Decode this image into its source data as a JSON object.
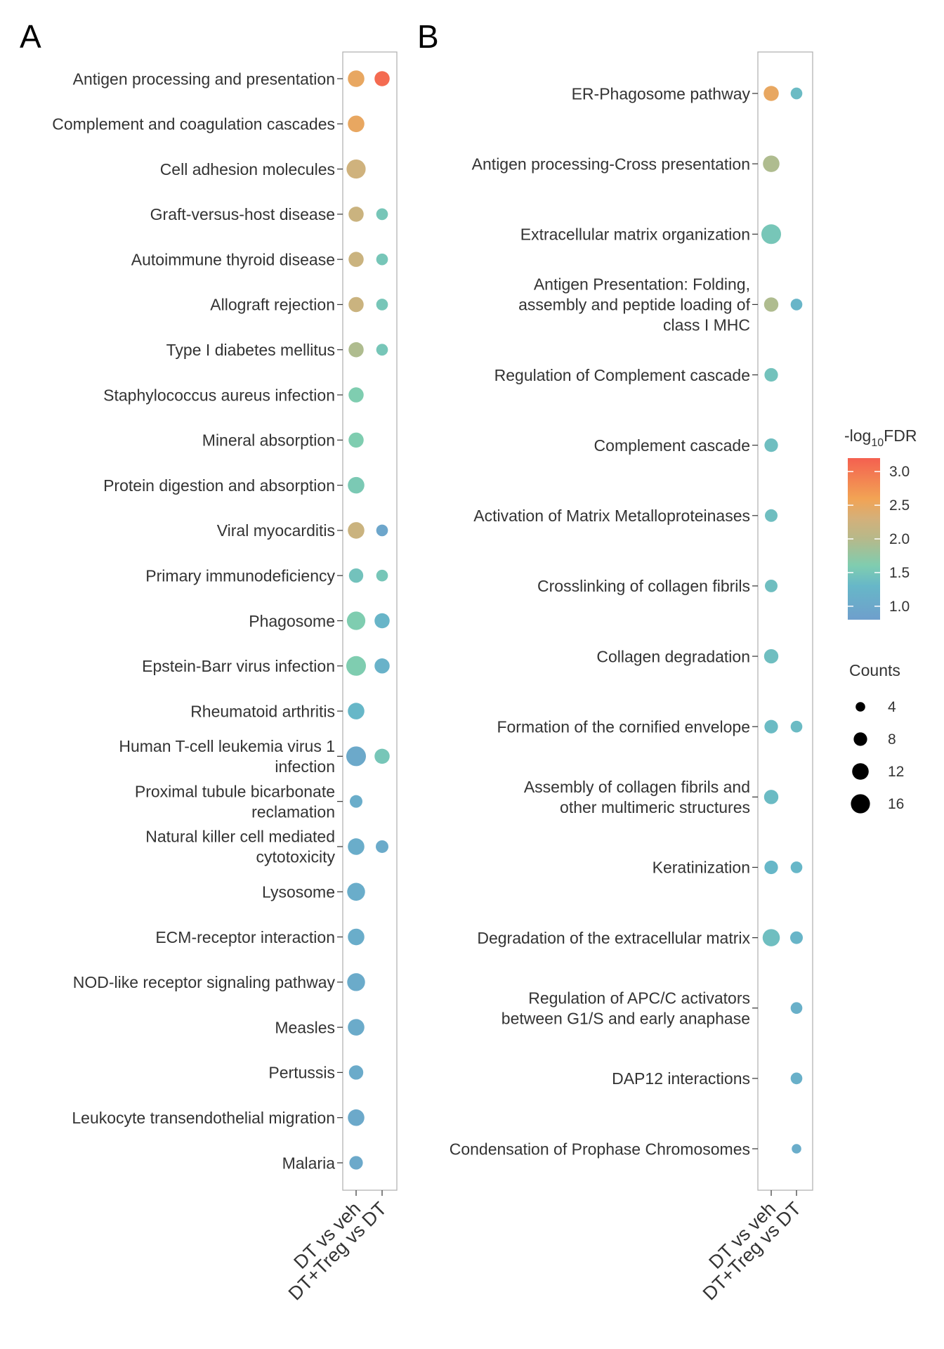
{
  "chart_data": [
    {
      "type": "scatter",
      "panel_label": "A",
      "categories": [
        "DT vs veh",
        "DT+Treg vs DT"
      ],
      "terms": [
        {
          "label": "Antigen processing and presentation",
          "points": [
            {
              "counts": 12,
              "fdr": 2.5
            },
            {
              "counts": 10,
              "fdr": 3.1
            }
          ]
        },
        {
          "label": "Complement and coagulation cascades",
          "points": [
            {
              "counts": 12,
              "fdr": 2.5
            },
            null
          ]
        },
        {
          "label": "Cell adhesion molecules",
          "points": [
            {
              "counts": 16,
              "fdr": 2.25
            },
            null
          ]
        },
        {
          "label": "Graft-versus-host disease",
          "points": [
            {
              "counts": 10,
              "fdr": 2.2
            },
            {
              "counts": 6,
              "fdr": 1.5
            }
          ]
        },
        {
          "label": "Autoimmune thyroid disease",
          "points": [
            {
              "counts": 10,
              "fdr": 2.2
            },
            {
              "counts": 6,
              "fdr": 1.5
            }
          ]
        },
        {
          "label": "Allograft rejection",
          "points": [
            {
              "counts": 10,
              "fdr": 2.2
            },
            {
              "counts": 6,
              "fdr": 1.5
            }
          ]
        },
        {
          "label": "Type I diabetes mellitus",
          "points": [
            {
              "counts": 10,
              "fdr": 1.95
            },
            {
              "counts": 6,
              "fdr": 1.5
            }
          ]
        },
        {
          "label": "Staphylococcus aureus infection",
          "points": [
            {
              "counts": 10,
              "fdr": 1.6
            },
            null
          ]
        },
        {
          "label": "Mineral absorption",
          "points": [
            {
              "counts": 10,
              "fdr": 1.6
            },
            null
          ]
        },
        {
          "label": "Protein digestion and absorption",
          "points": [
            {
              "counts": 12,
              "fdr": 1.55
            },
            null
          ]
        },
        {
          "label": "Viral myocarditis",
          "points": [
            {
              "counts": 12,
              "fdr": 2.2
            },
            {
              "counts": 6,
              "fdr": 0.95
            }
          ]
        },
        {
          "label": "Primary immunodeficiency",
          "points": [
            {
              "counts": 9,
              "fdr": 1.45
            },
            {
              "counts": 6,
              "fdr": 1.5
            }
          ]
        },
        {
          "label": "Phagosome",
          "points": [
            {
              "counts": 15,
              "fdr": 1.6
            },
            {
              "counts": 10,
              "fdr": 1.25
            }
          ]
        },
        {
          "label": "Epstein-Barr virus infection",
          "points": [
            {
              "counts": 17,
              "fdr": 1.6
            },
            {
              "counts": 10,
              "fdr": 1.2
            }
          ]
        },
        {
          "label": "Rheumatoid arthritis",
          "points": [
            {
              "counts": 12,
              "fdr": 1.3
            },
            null
          ]
        },
        {
          "label": "Human T-cell leukemia virus 1 infection",
          "points": [
            {
              "counts": 17,
              "fdr": 1.0
            },
            {
              "counts": 10,
              "fdr": 1.5
            }
          ]
        },
        {
          "label": "Proximal tubule bicarbonate reclamation",
          "points": [
            {
              "counts": 7,
              "fdr": 1.1
            },
            null
          ]
        },
        {
          "label": "Natural killer cell mediated cytotoxicity",
          "points": [
            {
              "counts": 12,
              "fdr": 1.1
            },
            {
              "counts": 7,
              "fdr": 1.05
            }
          ]
        },
        {
          "label": "Lysosome",
          "points": [
            {
              "counts": 14,
              "fdr": 1.1
            },
            null
          ]
        },
        {
          "label": "ECM-receptor interaction",
          "points": [
            {
              "counts": 12,
              "fdr": 1.1
            },
            null
          ]
        },
        {
          "label": "NOD-like receptor signaling pathway",
          "points": [
            {
              "counts": 14,
              "fdr": 1.05
            },
            null
          ]
        },
        {
          "label": "Measles",
          "points": [
            {
              "counts": 12,
              "fdr": 1.05
            },
            null
          ]
        },
        {
          "label": "Pertussis",
          "points": [
            {
              "counts": 9,
              "fdr": 1.05
            },
            null
          ]
        },
        {
          "label": "Leukocyte transendothelial migration",
          "points": [
            {
              "counts": 12,
              "fdr": 1.0
            },
            null
          ]
        },
        {
          "label": "Malaria",
          "points": [
            {
              "counts": 8,
              "fdr": 1.0
            },
            null
          ]
        }
      ]
    },
    {
      "type": "scatter",
      "panel_label": "B",
      "categories": [
        "DT vs veh",
        "DT+Treg vs DT"
      ],
      "terms": [
        {
          "label": "ER-Phagosome pathway",
          "points": [
            {
              "counts": 10,
              "fdr": 2.5
            },
            {
              "counts": 6,
              "fdr": 1.35
            }
          ]
        },
        {
          "label": "Antigen processing-Cross presentation",
          "points": [
            {
              "counts": 12,
              "fdr": 1.95
            },
            null
          ]
        },
        {
          "label": "Extracellular matrix organization",
          "points": [
            {
              "counts": 17,
              "fdr": 1.5
            },
            null
          ]
        },
        {
          "label": "Antigen Presentation: Folding, assembly and peptide loading of class I MHC",
          "points": [
            {
              "counts": 9,
              "fdr": 1.95
            },
            {
              "counts": 6,
              "fdr": 1.25
            }
          ]
        },
        {
          "label": "Regulation of Complement cascade",
          "points": [
            {
              "counts": 8,
              "fdr": 1.45
            },
            null
          ]
        },
        {
          "label": "Complement cascade",
          "points": [
            {
              "counts": 8,
              "fdr": 1.4
            },
            null
          ]
        },
        {
          "label": "Activation of Matrix Metalloproteinases",
          "points": [
            {
              "counts": 7,
              "fdr": 1.4
            },
            null
          ]
        },
        {
          "label": "Crosslinking of collagen fibrils",
          "points": [
            {
              "counts": 7,
              "fdr": 1.4
            },
            null
          ]
        },
        {
          "label": "Collagen degradation",
          "points": [
            {
              "counts": 9,
              "fdr": 1.4
            },
            null
          ]
        },
        {
          "label": "Formation of the cornified envelope",
          "points": [
            {
              "counts": 8,
              "fdr": 1.35
            },
            {
              "counts": 6,
              "fdr": 1.35
            }
          ]
        },
        {
          "label": "Assembly of collagen fibrils and other multimeric structures",
          "points": [
            {
              "counts": 9,
              "fdr": 1.35
            },
            null
          ]
        },
        {
          "label": "Keratinization",
          "points": [
            {
              "counts": 8,
              "fdr": 1.3
            },
            {
              "counts": 6,
              "fdr": 1.3
            }
          ]
        },
        {
          "label": "Degradation of the extracellular matrix",
          "points": [
            {
              "counts": 13,
              "fdr": 1.4
            },
            {
              "counts": 7,
              "fdr": 1.25
            }
          ]
        },
        {
          "label": "Regulation of APC/C activators between G1/S and early anaphase",
          "points": [
            null,
            {
              "counts": 6,
              "fdr": 1.15
            }
          ]
        },
        {
          "label": "DAP12 interactions",
          "points": [
            null,
            {
              "counts": 6,
              "fdr": 1.15
            }
          ]
        },
        {
          "label": "Condensation of Prophase Chromosomes",
          "points": [
            null,
            {
              "counts": 4,
              "fdr": 1.1
            }
          ]
        }
      ]
    }
  ],
  "legend": {
    "color_title_prefix": "-log",
    "color_title_sub": "10",
    "color_title_suffix": "FDR",
    "color_range": [
      0.8,
      3.2
    ],
    "color_ticks": [
      "3.0",
      "2.5",
      "2.0",
      "1.5",
      "1.0"
    ],
    "color_stops": [
      {
        "value": 0.8,
        "color": "#6f9fcc"
      },
      {
        "value": 1.3,
        "color": "#67b7c8"
      },
      {
        "value": 1.6,
        "color": "#7fcdb0"
      },
      {
        "value": 2.0,
        "color": "#b6b98a"
      },
      {
        "value": 2.3,
        "color": "#d4b07a"
      },
      {
        "value": 2.6,
        "color": "#f2a354"
      },
      {
        "value": 3.2,
        "color": "#f46050"
      }
    ],
    "size_title": "Counts",
    "size_ticks": [
      4,
      8,
      12,
      16
    ]
  }
}
